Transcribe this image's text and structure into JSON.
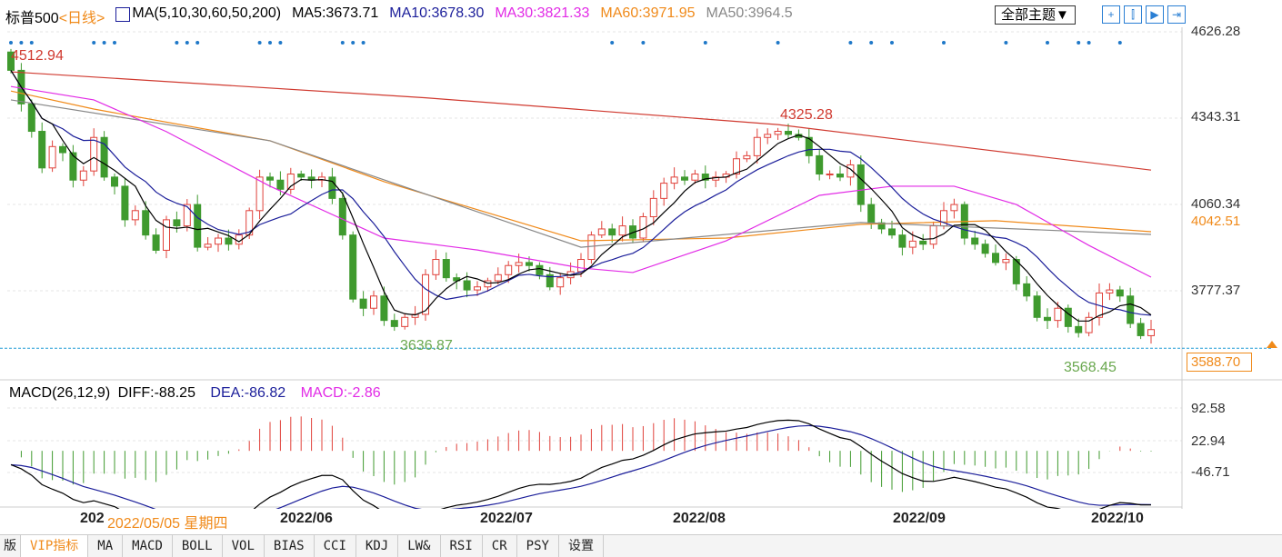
{
  "header": {
    "name": "标普500",
    "period": "<日线>",
    "ma_label": "MA(5,10,30,60,50,200)",
    "ma5": "MA5:3673.71",
    "ma10": "MA10:3678.30",
    "ma30": "MA30:3821.33",
    "ma60": "MA60:3971.95",
    "ma50": "MA50:3964.5",
    "theme": "全部主题▼"
  },
  "toolbar_icons": [
    "crosshair-icon",
    "interval-icon",
    "play-icon",
    "exit-icon"
  ],
  "colors": {
    "up": "#e0413a",
    "down": "#3f9a2e",
    "ma5": "#000000",
    "ma10": "#1b1e9a",
    "ma30": "#e22be6",
    "ma60": "#f08a1a",
    "ma50": "#888888",
    "ma200": "#d03a30",
    "accent": "#f08a1a"
  },
  "price_axis": [
    "4626.28",
    "4343.31",
    "4060.34",
    "3777.37"
  ],
  "tags": {
    "high": "4512.94",
    "mid_high": "4325.28",
    "low1": "3636.87",
    "low2": "3568.45",
    "ma60_value": "4042.51",
    "last_price": "3588.70"
  },
  "macd": {
    "label": "MACD(26,12,9)",
    "diff": "DIFF:-88.25",
    "dea": "DEA:-86.82",
    "macd": "MACD:-2.86",
    "axis": [
      "92.58",
      "22.94",
      "-46.71"
    ]
  },
  "dates": {
    "partial": "202",
    "cursor": "2022/05/05 星期四",
    "m6": "2022/06",
    "m7": "2022/07",
    "m8": "2022/08",
    "m9": "2022/09",
    "m10": "2022/10"
  },
  "tabs": [
    "版",
    "VIP指标",
    "MA",
    "MACD",
    "BOLL",
    "VOL",
    "BIAS",
    "CCI",
    "KDJ",
    "LW&",
    "RSI",
    "CR",
    "PSY",
    "设置"
  ],
  "chart_data": {
    "type": "candlestick",
    "first_open": 4560,
    "closes": [
      4500,
      4390,
      4300,
      4180,
      4250,
      4230,
      4140,
      4170,
      4280,
      4150,
      4120,
      4010,
      4040,
      3960,
      3910,
      4010,
      3990,
      4060,
      3920,
      3930,
      3950,
      3930,
      3960,
      4040,
      4150,
      4140,
      4110,
      4160,
      4150,
      4140,
      4150,
      4080,
      3960,
      3750,
      3720,
      3760,
      3680,
      3660,
      3690,
      3700,
      3830,
      3880,
      3820,
      3810,
      3780,
      3790,
      3810,
      3830,
      3860,
      3870,
      3860,
      3830,
      3790,
      3820,
      3840,
      3880,
      3960,
      3980,
      3960,
      3990,
      3950,
      4020,
      4080,
      4130,
      4150,
      4140,
      4160,
      4140,
      4150,
      4160,
      4210,
      4220,
      4280,
      4290,
      4300,
      4290,
      4280,
      4220,
      4160,
      4160,
      4150,
      4190,
      4060,
      4000,
      3980,
      3960,
      3920,
      3940,
      3930,
      3990,
      4040,
      4060,
      3950,
      3930,
      3900,
      3870,
      3880,
      3800,
      3760,
      3690,
      3680,
      3720,
      3660,
      3640,
      3690,
      3770,
      3780,
      3760,
      3670,
      3630,
      3650
    ],
    "ma200": [
      [
        0,
        4495
      ],
      [
        40,
        4410
      ],
      [
        74,
        4322
      ],
      [
        110,
        4173
      ]
    ],
    "ma60": [
      [
        0,
        4432
      ],
      [
        8,
        4373
      ],
      [
        25,
        4269
      ],
      [
        36,
        4135
      ],
      [
        55,
        3941
      ],
      [
        69,
        3950
      ],
      [
        82,
        3995
      ],
      [
        95,
        4007
      ],
      [
        110,
        3971
      ]
    ],
    "ma50": [
      [
        0,
        4403
      ],
      [
        25,
        4269
      ],
      [
        55,
        3920
      ],
      [
        82,
        4001
      ],
      [
        110,
        3962
      ]
    ],
    "ma30": [
      [
        0,
        4447
      ],
      [
        8,
        4403
      ],
      [
        15,
        4299
      ],
      [
        25,
        4120
      ],
      [
        36,
        3950
      ],
      [
        45,
        3911
      ],
      [
        55,
        3852
      ],
      [
        60,
        3837
      ],
      [
        69,
        3941
      ],
      [
        78,
        4090
      ],
      [
        85,
        4120
      ],
      [
        91,
        4120
      ],
      [
        97,
        4060
      ],
      [
        104,
        3926
      ],
      [
        110,
        3822
      ]
    ],
    "price_range": [
      3509,
      4626.28
    ]
  }
}
